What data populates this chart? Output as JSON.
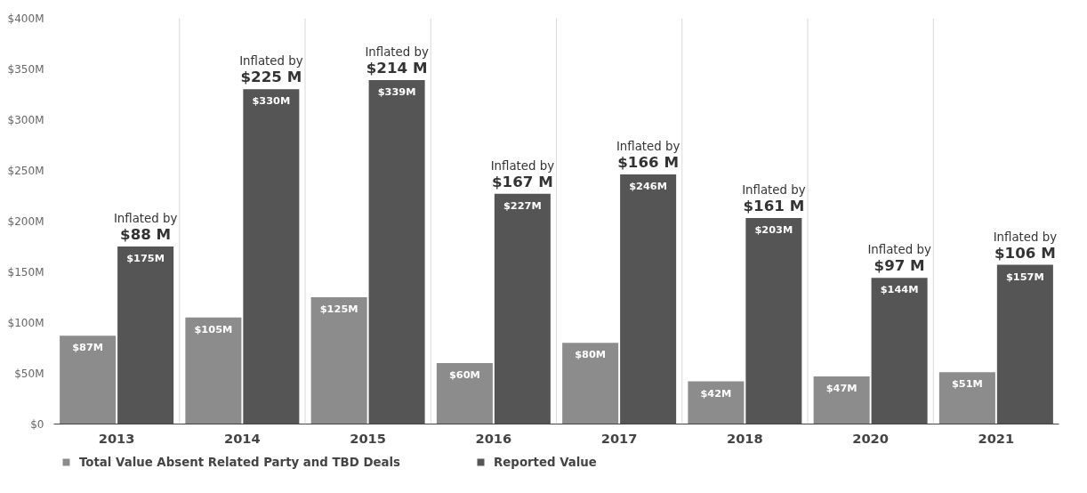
{
  "chart_data": {
    "type": "bar",
    "categories": [
      "2013",
      "2014",
      "2015",
      "2016",
      "2017",
      "2018",
      "2020",
      "2021"
    ],
    "series": [
      {
        "name": "Total Value Absent Related Party and TBD Deals",
        "color": "#8c8c8c",
        "values": [
          87,
          105,
          125,
          60,
          80,
          42,
          47,
          51
        ],
        "value_labels": [
          "$87M",
          "$105M",
          "$125M",
          "$60M",
          "$80M",
          "$42M",
          "$47M",
          "$51M"
        ]
      },
      {
        "name": "Reported Value",
        "color": "#555555",
        "values": [
          175,
          330,
          339,
          227,
          246,
          203,
          144,
          157
        ],
        "value_labels": [
          "$175M",
          "$330M",
          "$339M",
          "$227M",
          "$246M",
          "$203M",
          "$144M",
          "$157M"
        ]
      }
    ],
    "ylim": [
      0,
      400
    ],
    "yticks": [
      {
        "value": 0,
        "label": "$0"
      },
      {
        "value": 50,
        "label": "$50M"
      },
      {
        "value": 100,
        "label": "$100M"
      },
      {
        "value": 150,
        "label": "$150M"
      },
      {
        "value": 200,
        "label": "$200M"
      },
      {
        "value": 250,
        "label": "$250M"
      },
      {
        "value": 300,
        "label": "$300M"
      },
      {
        "value": 350,
        "label": "$350M"
      },
      {
        "value": 400,
        "label": "$400M"
      }
    ],
    "annotations": [
      {
        "text": "Inflated by\n$88 M",
        "x": "2013",
        "y": 175
      },
      {
        "text": "Inflated by\n$225 M",
        "x": "2014",
        "y": 330
      },
      {
        "text": "Inflated by\n$214 M",
        "x": "2015",
        "y": 339
      },
      {
        "text": "Inflated by\n$167 M",
        "x": "2016",
        "y": 227
      },
      {
        "text": "Inflated by\n$166 M",
        "x": "2017",
        "y": 246
      },
      {
        "text": "Inflated by\n$161 M",
        "x": "2018",
        "y": 203
      },
      {
        "text": "Inflated by\n$97 M",
        "x": "2020",
        "y": 144
      },
      {
        "text": "Inflated by\n$106 M",
        "x": "2021",
        "y": 157
      }
    ],
    "grid": "x",
    "legend": "bottom"
  }
}
